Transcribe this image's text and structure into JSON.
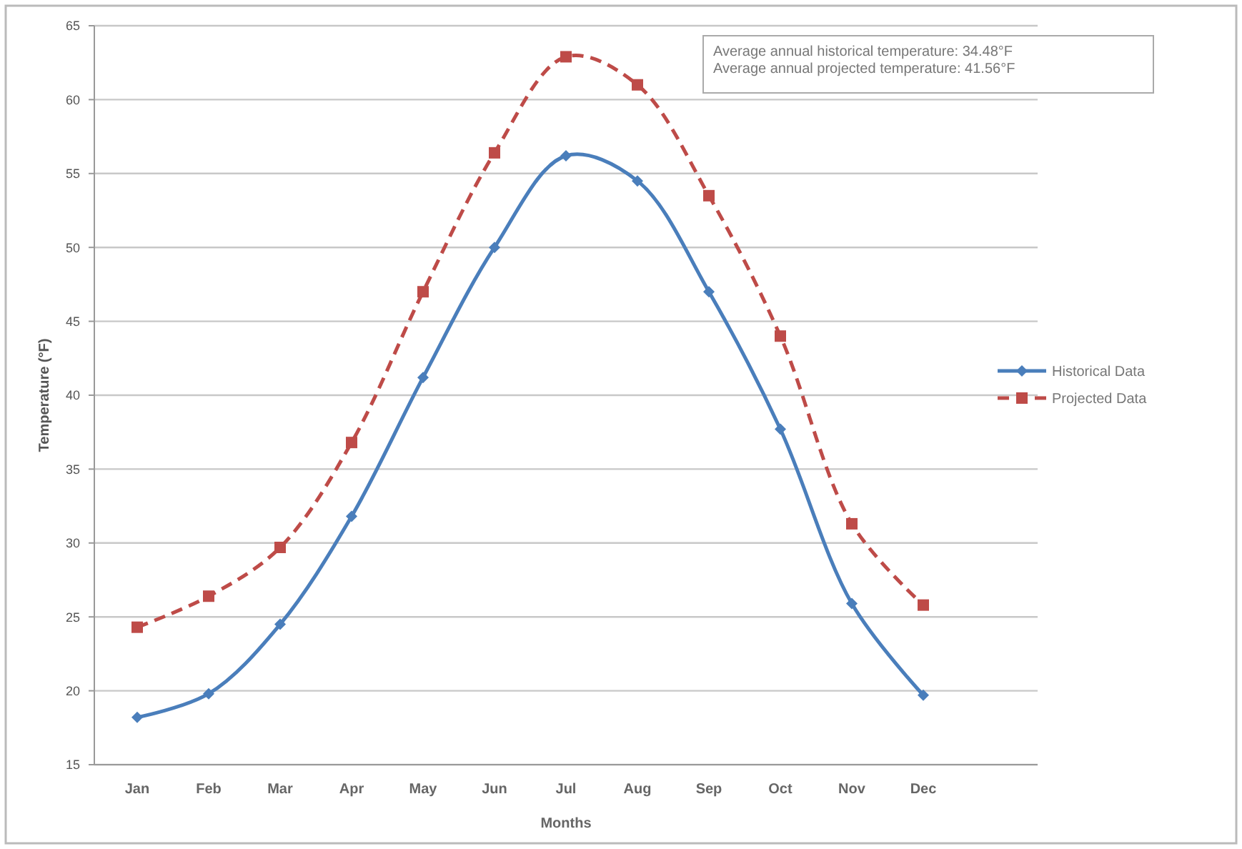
{
  "chart_data": {
    "type": "line",
    "xlabel": "Months",
    "ylabel": "Temperature (°F)",
    "categories": [
      "Jan",
      "Feb",
      "Mar",
      "Apr",
      "May",
      "Jun",
      "Jul",
      "Aug",
      "Sep",
      "Oct",
      "Nov",
      "Dec"
    ],
    "series": [
      {
        "name": "Historical Data",
        "color": "#4a7ebb",
        "marker": "diamond",
        "line_style": "solid",
        "values": [
          18.2,
          19.8,
          24.5,
          31.8,
          41.2,
          50.0,
          56.2,
          54.5,
          47.0,
          37.7,
          25.9,
          19.7
        ]
      },
      {
        "name": "Projected Data",
        "color": "#be4b48",
        "marker": "square",
        "line_style": "dashed",
        "values": [
          24.3,
          26.4,
          29.7,
          36.8,
          47.0,
          56.4,
          62.9,
          61.0,
          53.5,
          44.0,
          31.3,
          25.8
        ]
      }
    ],
    "ylim": [
      15,
      65
    ],
    "yticks": [
      15,
      20,
      25,
      30,
      35,
      40,
      45,
      50,
      55,
      60,
      65
    ],
    "grid": "y",
    "legend": "right",
    "annotations": [
      "Average annual historical temperature: 34.48°F",
      "Average annual projected temperature: 41.56°F"
    ]
  }
}
